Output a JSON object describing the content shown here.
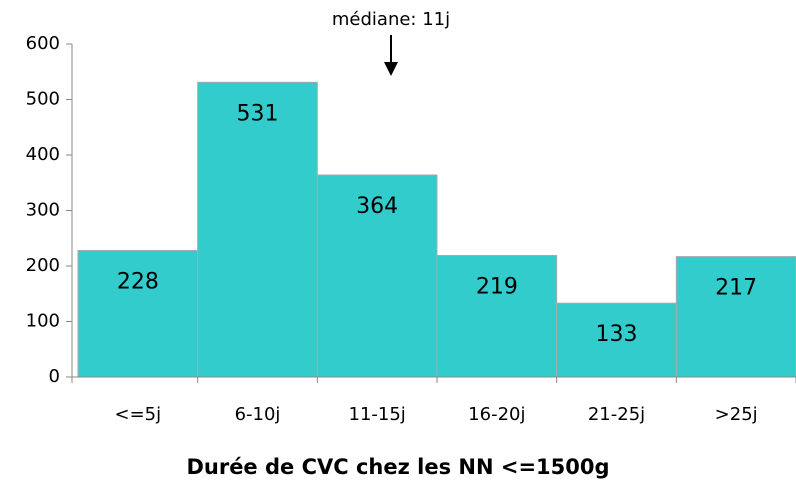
{
  "chart_data": {
    "type": "bar",
    "categories": [
      "<=5j",
      "6-10j",
      "11-15j",
      "16-20j",
      "21-25j",
      ">25j"
    ],
    "values": [
      228,
      531,
      364,
      219,
      133,
      217
    ],
    "color": "#33cccc",
    "ylim": [
      0,
      600
    ],
    "yticks": [
      0,
      100,
      200,
      300,
      400,
      500,
      600
    ],
    "x_label": "Durée de CVC chez les NN <=1500g",
    "annotation": "médiane: 11j",
    "grid": false
  }
}
